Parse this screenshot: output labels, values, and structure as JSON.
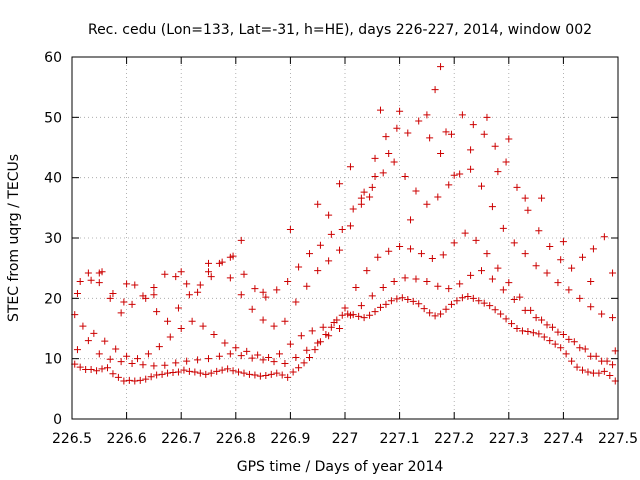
{
  "chart_data": {
    "type": "scatter",
    "title": "Rec. cedu (Lon=133, Lat=-31, h=HE), days 226-227, 2014, window 002",
    "xlabel": "GPS time / Days of year 2014",
    "ylabel": "STEC from uqrg / TECUs",
    "xlim": [
      226.5,
      227.5
    ],
    "ylim": [
      0,
      60
    ],
    "xticks": [
      "226.5",
      "226.6",
      "226.7",
      "226.8",
      "226.9",
      "227",
      "227.1",
      "227.2",
      "227.3",
      "227.4",
      "227.5"
    ],
    "yticks": [
      "0",
      "10",
      "20",
      "30",
      "40",
      "50",
      "60"
    ],
    "grid": true,
    "legend": "none",
    "marker": "+",
    "color": "#cc0000",
    "series": [
      {
        "x": [
          226.505,
          226.515,
          226.525,
          226.535,
          226.545,
          226.555,
          226.565,
          226.575,
          226.585,
          226.595,
          226.605,
          226.615,
          226.625,
          226.635,
          226.645,
          226.655,
          226.665,
          226.675,
          226.685,
          226.695,
          226.705,
          226.715,
          226.725,
          226.735,
          226.745,
          226.755,
          226.765,
          226.775,
          226.785,
          226.795,
          226.805,
          226.815,
          226.825,
          226.835,
          226.845,
          226.855,
          226.865,
          226.875,
          226.885,
          226.895,
          226.905,
          226.915,
          226.925,
          226.935,
          226.945,
          226.955,
          226.965,
          226.975,
          226.985,
          226.995,
          227.005,
          227.015,
          227.025,
          227.035,
          227.045,
          227.055,
          227.065,
          227.075,
          227.085,
          227.095,
          227.105,
          227.115,
          227.125,
          227.135,
          227.145,
          227.155,
          227.165,
          227.175,
          227.185,
          227.195,
          227.205,
          227.215,
          227.225,
          227.235,
          227.245,
          227.255,
          227.265,
          227.275,
          227.285,
          227.295,
          227.305,
          227.315,
          227.325,
          227.335,
          227.345,
          227.355,
          227.365,
          227.375,
          227.385,
          227.395,
          227.405,
          227.415,
          227.425,
          227.435,
          227.445,
          227.455,
          227.465,
          227.475,
          227.485,
          227.495
        ],
        "y": [
          9.1,
          8.6,
          8.2,
          8.2,
          8.0,
          8.3,
          8.5,
          7.5,
          6.9,
          6.3,
          6.4,
          6.3,
          6.4,
          6.6,
          7.0,
          7.3,
          7.4,
          7.6,
          7.7,
          7.8,
          8.1,
          7.9,
          7.8,
          7.6,
          7.4,
          7.6,
          7.9,
          8.1,
          8.3,
          8.0,
          7.8,
          7.6,
          7.4,
          7.3,
          7.1,
          7.2,
          7.4,
          7.6,
          7.3,
          6.9,
          7.8,
          8.5,
          9.3,
          10.2,
          11.5,
          12.8,
          14.0,
          15.2,
          16.4,
          17.2,
          17.4,
          17.3,
          17.0,
          16.8,
          17.2,
          17.8,
          18.5,
          19.0,
          19.6,
          19.9,
          20.1,
          19.8,
          19.5,
          19.1,
          18.3,
          17.6,
          17.1,
          17.4,
          18.2,
          19.0,
          19.6,
          20.1,
          20.3,
          20.0,
          19.6,
          19.2,
          18.8,
          18.1,
          17.4,
          16.6,
          15.8,
          15.0,
          14.6,
          14.5,
          14.3,
          14.1,
          13.6,
          13.0,
          12.4,
          11.8,
          10.8,
          9.6,
          8.6,
          8.1,
          7.8,
          7.6,
          7.6,
          7.9,
          7.2,
          6.3
        ]
      },
      {
        "x": [
          226.51,
          226.53,
          226.55,
          226.57,
          226.59,
          226.61,
          226.63,
          226.65,
          226.67,
          226.69,
          226.71,
          226.73,
          226.75,
          226.77,
          226.79,
          226.81,
          226.83,
          226.85,
          226.87,
          226.89,
          226.91,
          226.93,
          226.95,
          226.97,
          226.99,
          227.01,
          227.03,
          227.05,
          227.07,
          227.09,
          227.11,
          227.13,
          227.15,
          227.17,
          227.19,
          227.21,
          227.23,
          227.25,
          227.27,
          227.29,
          227.31,
          227.33,
          227.35,
          227.37,
          227.39,
          227.41,
          227.43,
          227.45,
          227.47,
          227.49
        ],
        "y": [
          11.5,
          13.0,
          10.8,
          9.9,
          9.5,
          9.2,
          9.0,
          8.8,
          8.9,
          9.3,
          9.6,
          9.8,
          10.0,
          10.4,
          10.8,
          10.5,
          10.1,
          9.8,
          9.5,
          9.2,
          10.2,
          11.4,
          12.6,
          13.8,
          15.0,
          17.2,
          18.8,
          20.4,
          21.8,
          22.8,
          23.4,
          23.2,
          22.8,
          22.0,
          21.6,
          22.4,
          23.8,
          24.6,
          23.2,
          21.4,
          19.8,
          18.0,
          16.8,
          15.6,
          14.4,
          13.2,
          11.8,
          10.4,
          9.6,
          9.0
        ]
      },
      {
        "x": [
          226.505,
          226.52,
          226.54,
          226.56,
          226.58,
          226.6,
          226.62,
          226.64,
          226.66,
          226.68,
          226.7,
          226.72,
          226.74,
          226.76,
          226.78,
          226.8,
          226.82,
          226.84,
          226.86,
          226.88,
          226.9,
          226.92,
          226.94,
          226.96,
          226.98,
          227.0,
          227.02,
          227.04,
          227.06,
          227.08,
          227.1,
          227.12,
          227.14,
          227.16,
          227.18,
          227.2,
          227.22,
          227.24,
          227.26,
          227.28,
          227.3,
          227.32,
          227.34,
          227.36,
          227.38,
          227.4,
          227.42,
          227.44,
          227.46,
          227.48,
          227.495
        ],
        "y": [
          17.3,
          15.4,
          14.2,
          12.9,
          11.6,
          10.4,
          10.0,
          10.8,
          12.0,
          13.6,
          15.0,
          16.2,
          15.4,
          14.0,
          12.6,
          11.8,
          11.2,
          10.6,
          10.2,
          10.8,
          12.4,
          13.8,
          14.6,
          15.2,
          16.0,
          18.4,
          21.8,
          24.6,
          26.8,
          27.8,
          28.6,
          28.2,
          27.4,
          26.6,
          27.2,
          29.2,
          30.8,
          29.6,
          27.4,
          25.0,
          22.6,
          20.2,
          18.0,
          16.4,
          15.2,
          14.0,
          12.8,
          11.6,
          10.4,
          9.6,
          11.3
        ]
      },
      {
        "x": [
          226.51,
          226.53,
          226.55,
          226.57,
          226.59,
          226.61,
          226.63,
          226.65,
          226.67,
          226.69,
          226.71,
          226.73,
          226.75,
          226.77,
          226.79,
          226.81,
          226.83,
          226.85,
          226.87,
          226.89,
          226.91,
          226.93,
          226.95,
          226.97,
          226.99,
          227.01,
          227.03,
          227.05,
          227.07,
          227.09,
          227.11,
          227.13,
          227.15,
          227.17,
          227.19,
          227.21,
          227.23,
          227.25,
          227.27,
          227.29,
          227.31,
          227.33,
          227.35,
          227.37,
          227.39,
          227.41,
          227.43,
          227.45,
          227.47,
          227.49
        ],
        "y": [
          20.8,
          24.2,
          22.6,
          20.0,
          17.6,
          19.0,
          20.4,
          21.8,
          24.0,
          23.6,
          22.4,
          21.0,
          24.4,
          25.8,
          23.4,
          20.6,
          18.2,
          16.4,
          15.4,
          16.2,
          19.4,
          22.0,
          24.6,
          26.2,
          28.0,
          32.0,
          35.6,
          38.4,
          40.8,
          42.6,
          40.2,
          37.8,
          35.6,
          36.8,
          38.8,
          40.6,
          41.4,
          38.6,
          35.2,
          31.6,
          29.2,
          27.4,
          25.4,
          24.2,
          22.6,
          21.4,
          20.0,
          18.6,
          17.4,
          16.8
        ]
      },
      {
        "x": [
          226.515,
          226.535,
          226.555,
          226.575,
          226.595,
          226.615,
          226.635,
          226.655,
          226.675,
          226.695,
          226.715,
          226.735,
          226.755,
          226.775,
          226.795,
          226.815,
          226.835,
          226.855,
          226.875,
          226.895,
          226.915,
          226.935,
          226.955,
          226.975,
          226.995,
          227.015,
          227.035,
          227.055,
          227.075,
          227.095,
          227.115,
          227.135,
          227.155,
          227.175,
          227.195,
          227.215,
          227.235,
          227.255,
          227.275,
          227.295,
          227.315,
          227.335,
          227.355,
          227.375,
          227.395,
          227.415,
          227.435,
          227.455,
          227.475,
          227.49
        ],
        "y": [
          22.8,
          23.0,
          24.4,
          20.8,
          19.4,
          22.2,
          20.0,
          17.8,
          16.2,
          18.4,
          20.6,
          22.2,
          23.6,
          26.0,
          27.0,
          24.0,
          21.6,
          20.2,
          21.4,
          22.8,
          25.2,
          27.4,
          28.8,
          30.6,
          31.4,
          34.8,
          37.6,
          43.2,
          46.8,
          48.2,
          47.4,
          49.4,
          46.6,
          44.0,
          47.2,
          50.4,
          48.8,
          47.2,
          45.2,
          42.6,
          38.4,
          34.6,
          31.2,
          28.6,
          26.4,
          25.0,
          26.8,
          28.2,
          30.2,
          24.2
        ]
      },
      {
        "x": [
          226.55,
          226.6,
          226.65,
          226.7,
          226.75,
          226.79,
          226.81,
          226.85,
          226.9,
          226.95,
          226.97,
          226.99,
          227.01,
          227.03,
          227.045,
          227.055,
          227.065,
          227.08,
          227.1,
          227.12,
          227.15,
          227.165,
          227.175,
          227.185,
          227.2,
          227.23,
          227.26,
          227.28,
          227.3,
          227.33,
          227.36,
          227.4,
          227.45
        ],
        "y": [
          24.2,
          22.4,
          20.6,
          24.4,
          25.8,
          26.8,
          29.6,
          21.0,
          31.4,
          35.6,
          33.8,
          39.0,
          41.8,
          36.6,
          36.8,
          40.2,
          51.2,
          44.0,
          51.0,
          33.0,
          50.4,
          54.6,
          58.4,
          47.6,
          40.4,
          44.6,
          50.0,
          41.0,
          46.4,
          36.6,
          36.6,
          29.4,
          22.8
        ]
      }
    ]
  }
}
